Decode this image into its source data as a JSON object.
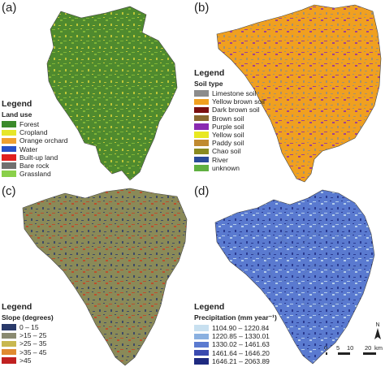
{
  "panels": [
    {
      "label": "(a)",
      "legend_title": "Legend",
      "legend_subtitle": "Land use",
      "items": [
        {
          "label": "Forest",
          "color": "#3a8a2a"
        },
        {
          "label": "Cropland",
          "color": "#e6e62a"
        },
        {
          "label": "Orange orchard",
          "color": "#f0a030"
        },
        {
          "label": "Water",
          "color": "#2850c8"
        },
        {
          "label": "Built-up land",
          "color": "#e02020"
        },
        {
          "label": "Bare rock",
          "color": "#707070"
        },
        {
          "label": "Grassland",
          "color": "#8ad04a"
        }
      ],
      "map_colors": {
        "base": "#4f8a2e",
        "accent": "#d8d63a",
        "accent2": "#8cbf3a"
      }
    },
    {
      "label": "(b)",
      "legend_title": "Legend",
      "legend_subtitle": "Soil type",
      "items": [
        {
          "label": "Limestone soil",
          "color": "#8c8c8c"
        },
        {
          "label": "Yellow brown soil",
          "color": "#f0a020"
        },
        {
          "label": "Dark brown soil",
          "color": "#7a1010"
        },
        {
          "label": "Brown soil",
          "color": "#8a6a30"
        },
        {
          "label": "Purple soil",
          "color": "#8a2ab0"
        },
        {
          "label": "Yellow soil",
          "color": "#e8e820"
        },
        {
          "label": "Paddy soil",
          "color": "#c08a30"
        },
        {
          "label": "Chao soil",
          "color": "#8a8a20"
        },
        {
          "label": "River",
          "color": "#2a4a9a"
        },
        {
          "label": "unknown",
          "color": "#60b040"
        }
      ],
      "map_colors": {
        "base": "#f0a020",
        "accent": "#8c8c8c",
        "accent2": "#8a2ab0"
      }
    },
    {
      "label": "(c)",
      "legend_title": "Legend",
      "legend_subtitle": "Slope (degrees)",
      "items": [
        {
          "label": "0 – 15",
          "color": "#2a3a6a"
        },
        {
          "label": ">15 – 25",
          "color": "#8a8a70"
        },
        {
          "label": ">25 – 35",
          "color": "#c8b850"
        },
        {
          "label": ">35 – 45",
          "color": "#e08a30"
        },
        {
          "label": ">45",
          "color": "#c02020"
        }
      ],
      "map_colors": {
        "base": "#8a8a58",
        "accent": "#2a3a6a",
        "accent2": "#c84020"
      }
    },
    {
      "label": "(d)",
      "legend_title": "Legend",
      "legend_subtitle": "Precipitation (mm year⁻¹)",
      "items": [
        {
          "label": "1104.90 – 1220.84",
          "color": "#c8e0f0"
        },
        {
          "label": "1220.85 – 1330.01",
          "color": "#8ab0e0"
        },
        {
          "label": "1330.02 – 1461.63",
          "color": "#5a7ad0"
        },
        {
          "label": "1461.64 – 1646.20",
          "color": "#3a4ab0"
        },
        {
          "label": "1646.21 – 2063.89",
          "color": "#1e2a80"
        }
      ],
      "map_colors": {
        "base": "#5a7ad0",
        "accent": "#1e2a80",
        "accent2": "#c8e0f0"
      },
      "scale": {
        "ticks": [
          "0",
          "5",
          "10",
          "20"
        ],
        "unit": "km",
        "north": "N"
      }
    }
  ]
}
